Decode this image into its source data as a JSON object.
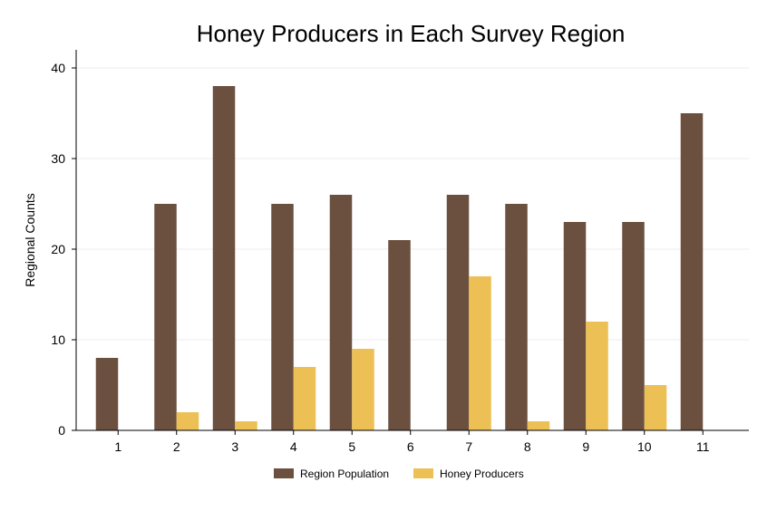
{
  "chart_data": {
    "type": "bar",
    "title": "Honey Producers in Each Survey Region",
    "xlabel": "",
    "ylabel": "Regional Counts",
    "categories": [
      "1",
      "2",
      "3",
      "4",
      "5",
      "6",
      "7",
      "8",
      "9",
      "10",
      "11"
    ],
    "series": [
      {
        "name": "Region Population",
        "color": "#6b4f3f",
        "values": [
          8,
          25,
          38,
          25,
          26,
          21,
          26,
          25,
          23,
          23,
          35
        ]
      },
      {
        "name": "Honey Producers",
        "color": "#ecc054",
        "values": [
          0,
          2,
          1,
          7,
          9,
          0,
          17,
          1,
          12,
          5,
          0
        ]
      }
    ],
    "ylim": [
      0,
      40
    ],
    "yticks": [
      0,
      10,
      20,
      30,
      40
    ],
    "grid": true,
    "legend_position": "bottom"
  }
}
